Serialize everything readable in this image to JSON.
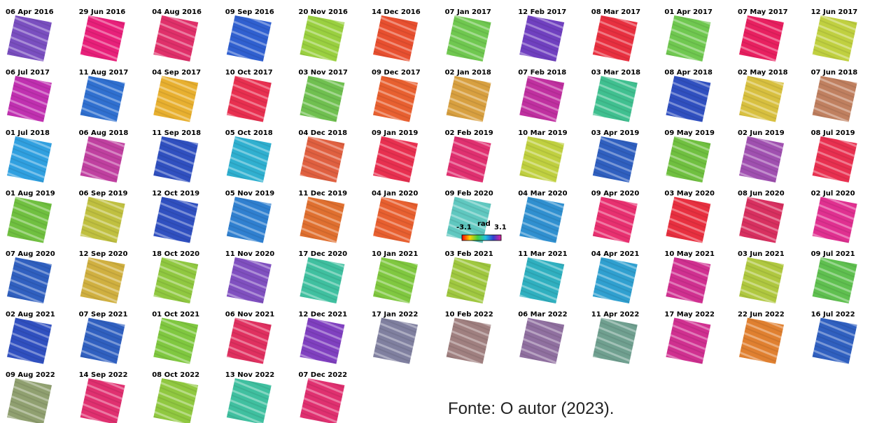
{
  "tiles": [
    {
      "date": "06 Apr 2016",
      "color": "#7a4fc0"
    },
    {
      "date": "29 Jun 2016",
      "color": "#e8207a"
    },
    {
      "date": "04 Aug 2016",
      "color": "#e0306a"
    },
    {
      "date": "09 Sep 2016",
      "color": "#3060d0"
    },
    {
      "date": "20 Nov 2016",
      "color": "#9ad040"
    },
    {
      "date": "14 Dec 2016",
      "color": "#e85030"
    },
    {
      "date": "07 Jan 2017",
      "color": "#70c850"
    },
    {
      "date": "12 Feb 2017",
      "color": "#7040c0"
    },
    {
      "date": "08 Mar 2017",
      "color": "#e83040"
    },
    {
      "date": "01 Apr 2017",
      "color": "#70c850"
    },
    {
      "date": "07 May 2017",
      "color": "#e82060"
    },
    {
      "date": "12 Jun 2017",
      "color": "#c0d040"
    },
    {
      "date": "06 Jul 2017",
      "color": "#c030b0"
    },
    {
      "date": "11 Aug 2017",
      "color": "#3070d0"
    },
    {
      "date": "04 Sep 2017",
      "color": "#e8b030"
    },
    {
      "date": "10 Oct 2017",
      "color": "#e83050"
    },
    {
      "date": "03 Nov 2017",
      "color": "#70c050"
    },
    {
      "date": "09 Dec 2017",
      "color": "#e86030"
    },
    {
      "date": "02 Jan 2018",
      "color": "#d8a040"
    },
    {
      "date": "07 Feb 2018",
      "color": "#c030a0"
    },
    {
      "date": "03 Mar 2018",
      "color": "#40c090"
    },
    {
      "date": "08 Apr 2018",
      "color": "#3050c0"
    },
    {
      "date": "02 May 2018",
      "color": "#d8c040"
    },
    {
      "date": "07 Jun 2018",
      "color": "#c08060"
    },
    {
      "date": "01 Jul 2018",
      "color": "#30a0e0"
    },
    {
      "date": "06 Aug 2018",
      "color": "#c040a0"
    },
    {
      "date": "11 Sep 2018",
      "color": "#3050c0"
    },
    {
      "date": "05 Oct 2018",
      "color": "#30b0d0"
    },
    {
      "date": "04 Dec 2018",
      "color": "#e06040"
    },
    {
      "date": "09 Jan 2019",
      "color": "#e83050"
    },
    {
      "date": "02 Feb 2019",
      "color": "#e03070"
    },
    {
      "date": "10 Mar 2019",
      "color": "#c0d040"
    },
    {
      "date": "03 Apr 2019",
      "color": "#3060c0"
    },
    {
      "date": "09 May 2019",
      "color": "#70c040"
    },
    {
      "date": "02 Jun 2019",
      "color": "#a050b0"
    },
    {
      "date": "08 Jul 2019",
      "color": "#e83050"
    },
    {
      "date": "01 Aug 2019",
      "color": "#70c040"
    },
    {
      "date": "06 Sep 2019",
      "color": "#c0c040"
    },
    {
      "date": "12 Oct 2019",
      "color": "#3050c0"
    },
    {
      "date": "05 Nov 2019",
      "color": "#3080d0"
    },
    {
      "date": "11 Dec 2019",
      "color": "#e07030"
    },
    {
      "date": "04 Jan 2020",
      "color": "#e86030"
    },
    {
      "date": "09 Feb 2020",
      "color": "#60c8c0"
    },
    {
      "date": "04 Mar 2020",
      "color": "#3090d0"
    },
    {
      "date": "09 Apr 2020",
      "color": "#e83070"
    },
    {
      "date": "03 May 2020",
      "color": "#e83040"
    },
    {
      "date": "08 Jun 2020",
      "color": "#d83060"
    },
    {
      "date": "02 Jul 2020",
      "color": "#e03090"
    },
    {
      "date": "07 Aug 2020",
      "color": "#3060c0"
    },
    {
      "date": "12 Sep 2020",
      "color": "#d0b040"
    },
    {
      "date": "18 Oct 2020",
      "color": "#90c840"
    },
    {
      "date": "11 Nov 2020",
      "color": "#8050c0"
    },
    {
      "date": "17 Dec 2020",
      "color": "#40c0a0"
    },
    {
      "date": "10 Jan 2021",
      "color": "#80c840"
    },
    {
      "date": "03 Feb 2021",
      "color": "#a0c840"
    },
    {
      "date": "11 Mar 2021",
      "color": "#30b0c0"
    },
    {
      "date": "04 Apr 2021",
      "color": "#30a0d0"
    },
    {
      "date": "10 May 2021",
      "color": "#d03090"
    },
    {
      "date": "03 Jun 2021",
      "color": "#b0c840"
    },
    {
      "date": "09 Jul 2021",
      "color": "#60c050"
    },
    {
      "date": "02 Aug 2021",
      "color": "#3050c0"
    },
    {
      "date": "07 Sep 2021",
      "color": "#3060c0"
    },
    {
      "date": "01 Oct 2021",
      "color": "#80c840"
    },
    {
      "date": "06 Nov 2021",
      "color": "#e03060"
    },
    {
      "date": "12 Dec 2021",
      "color": "#8040c0"
    },
    {
      "date": "17 Jan 2022",
      "color": "#8080a0"
    },
    {
      "date": "10 Feb 2022",
      "color": "#a08080"
    },
    {
      "date": "06 Mar 2022",
      "color": "#9070a0"
    },
    {
      "date": "11 Apr 2022",
      "color": "#70a090"
    },
    {
      "date": "17 May 2022",
      "color": "#d03090"
    },
    {
      "date": "22 Jun 2022",
      "color": "#e08030"
    },
    {
      "date": "16 Jul 2022",
      "color": "#3060c0"
    },
    {
      "date": "09 Aug 2022",
      "color": "#90a070"
    },
    {
      "date": "14 Sep 2022",
      "color": "#e03070"
    },
    {
      "date": "08 Oct 2022",
      "color": "#90c840"
    },
    {
      "date": "13 Nov 2022",
      "color": "#40c0a0"
    },
    {
      "date": "07 Dec 2022",
      "color": "#e03070"
    }
  ],
  "colorbar": {
    "min_label": "-3.1",
    "unit": "rad",
    "max_label": "3.1"
  },
  "caption": "Fonte: O autor (2023)."
}
